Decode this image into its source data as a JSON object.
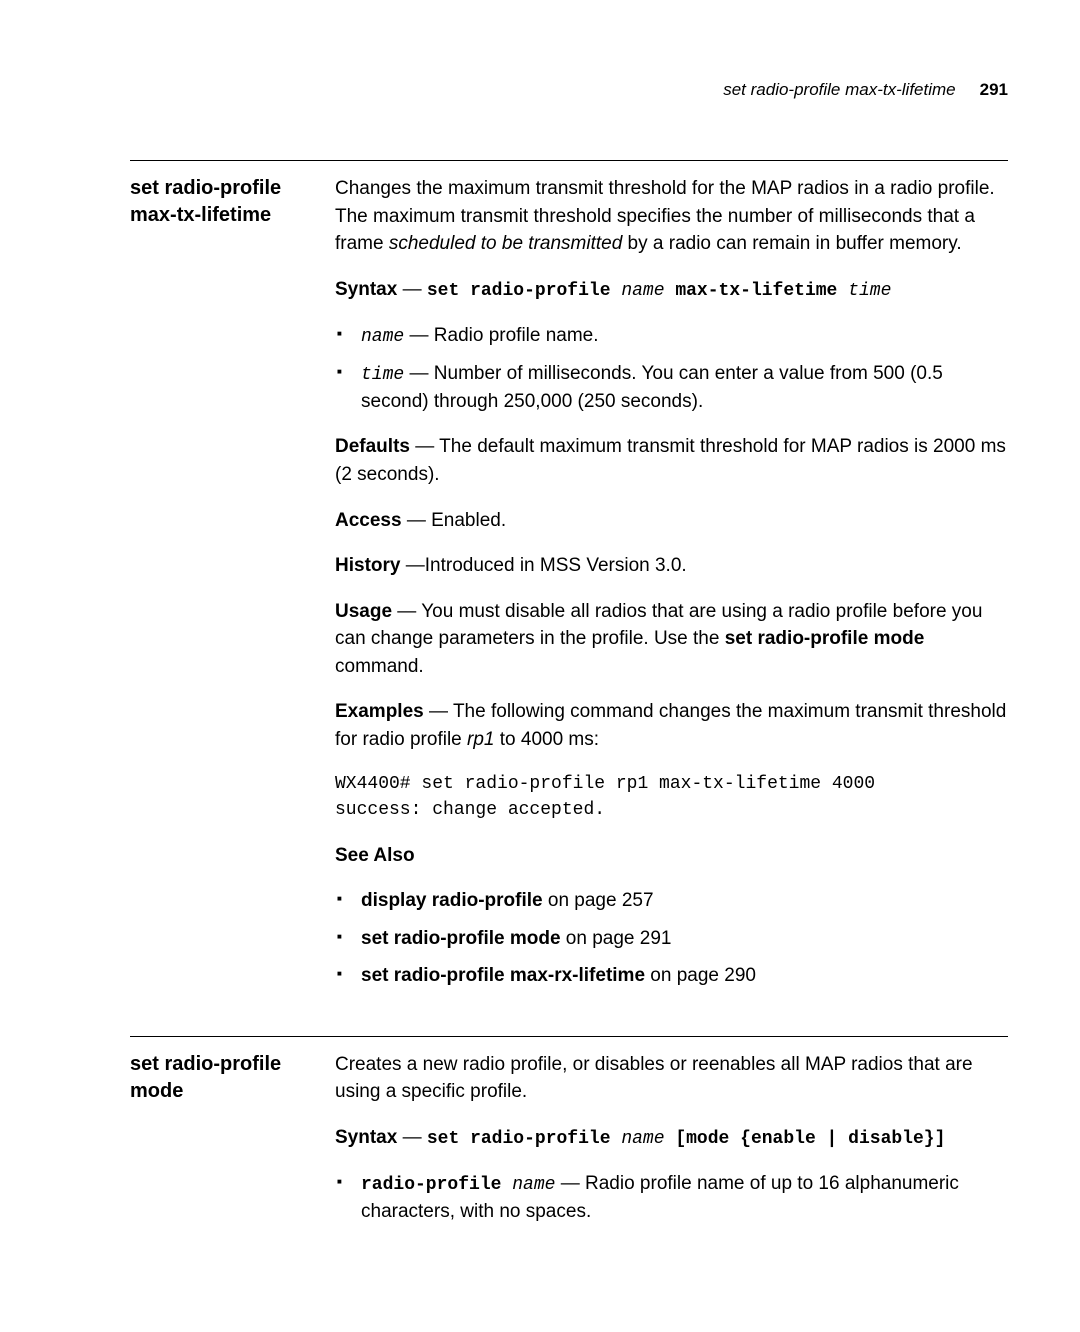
{
  "running_head": {
    "title": "set radio-profile max-tx-lifetime",
    "page_number": "291"
  },
  "section1": {
    "title": "set radio-profile max-tx-lifetime",
    "intro_a": "Changes the maximum transmit threshold for the MAP radios in a radio profile. The maximum transmit threshold specifies the number of milliseconds that a frame ",
    "intro_italic": "scheduled to be transmitted",
    "intro_b": " by a radio can remain in buffer memory.",
    "syntax_label": "Syntax",
    "syntax_dash": " — ",
    "syntax_cmd_a": "set radio-profile ",
    "syntax_name": "name",
    "syntax_cmd_b": " max-tx-lifetime ",
    "syntax_time": "time",
    "param_name_code": "name",
    "param_name_text": " — Radio profile name.",
    "param_time_code": "time",
    "param_time_text": " — Number of milliseconds. You can enter a value from 500 (0.5 second) through 250,000 (250 seconds).",
    "defaults_label": "Defaults",
    "defaults_text": " — The default maximum transmit threshold for MAP radios is 2000 ms (2 seconds).",
    "access_label": "Access",
    "access_text": " — Enabled.",
    "history_label": "History",
    "history_text": " —Introduced in MSS Version 3.0.",
    "usage_label": "Usage",
    "usage_a": " — You must disable all radios that are using a radio profile before you can change parameters in the profile. Use the ",
    "usage_bold": "set radio-profile mode",
    "usage_b": " command.",
    "examples_label": "Examples",
    "examples_a": " — The following command changes the maximum transmit threshold for radio profile ",
    "examples_rp1": "rp1",
    "examples_b": " to 4000 ms:",
    "example_code": "WX4400# set radio-profile rp1 max-tx-lifetime 4000\nsuccess: change accepted.",
    "see_also_label": "See Also",
    "see1_bold": "display radio-profile",
    "see1_rest": " on page 257",
    "see2_bold": "set radio-profile mode",
    "see2_rest": " on page 291",
    "see3_bold": "set radio-profile max-rx-lifetime",
    "see3_rest": " on page 290"
  },
  "section2": {
    "title": "set radio-profile mode",
    "intro": "Creates a new radio profile, or disables or reenables all MAP radios that are using a specific profile.",
    "syntax_label": "Syntax",
    "syntax_dash": " — ",
    "syntax_cmd_a": "set radio-profile ",
    "syntax_name": "name",
    "syntax_cmd_b": " [mode {enable | disable}]",
    "param1_code": "radio-profile ",
    "param1_name": "name",
    "param1_text": " — Radio profile name of up to 16 alphanumeric characters, with no spaces."
  }
}
